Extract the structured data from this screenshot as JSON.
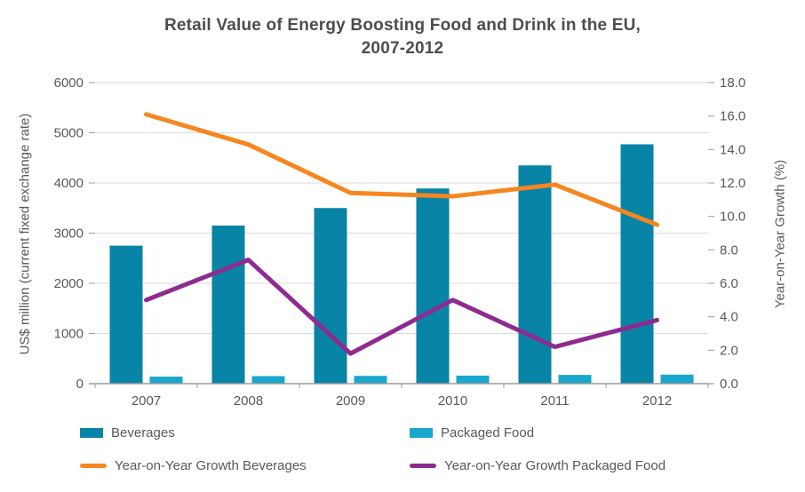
{
  "header": {
    "title_lines": [
      "Retail Value of Energy Boosting Food and Drink in the EU,",
      "2007-2012"
    ]
  },
  "chart_data": {
    "type": "bar",
    "subtype": "bar-line-combo",
    "title": "Retail Value of Energy Boosting Food and Drink in the EU, 2007-2012",
    "categories": [
      "2007",
      "2008",
      "2009",
      "2010",
      "2011",
      "2012"
    ],
    "series": [
      {
        "name": "Beverages",
        "type": "bar",
        "axis": "left",
        "color": "#0884A6",
        "values": [
          2750,
          3150,
          3500,
          3890,
          4350,
          4770
        ]
      },
      {
        "name": "Packaged Food",
        "type": "bar",
        "axis": "left",
        "color": "#19A7CE",
        "values": [
          140,
          150,
          155,
          160,
          175,
          180
        ]
      },
      {
        "name": "Year-on-Year Growth Beverages",
        "type": "line",
        "axis": "right",
        "color": "#F6861F",
        "values": [
          16.1,
          14.3,
          11.4,
          11.2,
          11.9,
          9.5
        ]
      },
      {
        "name": "Year-on-Year Growth Packaged Food",
        "type": "line",
        "axis": "right",
        "color": "#8E2B90",
        "values": [
          5.0,
          7.4,
          1.8,
          5.0,
          2.2,
          3.8
        ]
      }
    ],
    "left_axis": {
      "label": "US$ million (current fixed exchange rate)",
      "min": 0,
      "max": 6000,
      "ticks": [
        "0",
        "1000",
        "2000",
        "3000",
        "4000",
        "5000",
        "6000"
      ]
    },
    "right_axis": {
      "label": "Year-on-Year Growth (%)",
      "min": 0,
      "max": 18,
      "ticks": [
        "0.0",
        "2.0",
        "4.0",
        "6.0",
        "8.0",
        "10.0",
        "12.0",
        "14.0",
        "16.0",
        "18.0"
      ]
    },
    "grid": true,
    "legend_position": "bottom"
  },
  "style": {
    "grid_color": "#D9D9D9",
    "axis_line_color": "#9C9C9C",
    "tick_text_color": "#595959",
    "title_color": "#4D4D4D"
  }
}
